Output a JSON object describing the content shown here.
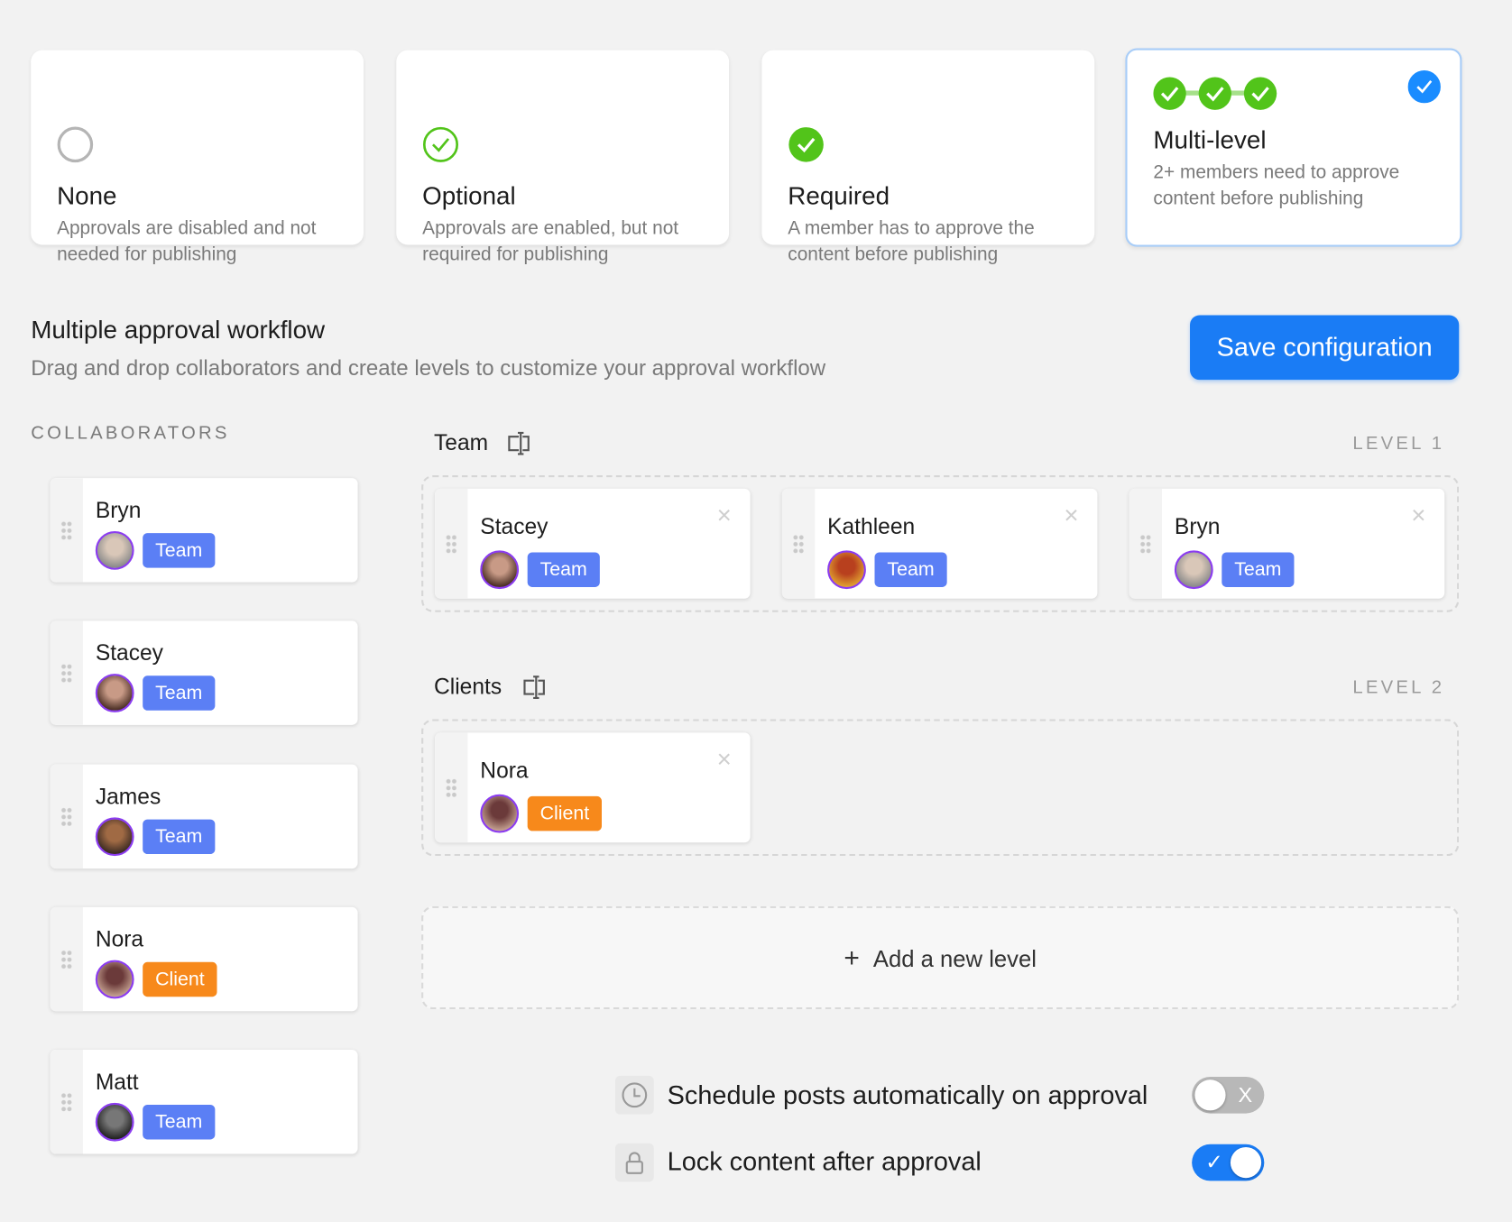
{
  "modes": [
    {
      "title": "None",
      "description": "Approvals are disabled and not needed for publishing",
      "icon": "empty-circle-icon",
      "selected": false
    },
    {
      "title": "Optional",
      "description": "Approvals are enabled, but not required for publishing",
      "icon": "check-circle-outline-icon",
      "selected": false
    },
    {
      "title": "Required",
      "description": "A member has to approve the content before publishing",
      "icon": "check-badge-icon",
      "selected": false
    },
    {
      "title": "Multi-level",
      "description": "2+ members need to approve content before publishing",
      "icon": "multi-check-icon",
      "selected": true
    }
  ],
  "workflow": {
    "title": "Multiple approval workflow",
    "subtitle": "Drag and drop collaborators and create levels to customize your approval workflow",
    "save_label": "Save configuration"
  },
  "collaborators": {
    "heading": "COLLABORATORS",
    "items": [
      {
        "name": "Bryn",
        "role": "Team"
      },
      {
        "name": "Stacey",
        "role": "Team"
      },
      {
        "name": "James",
        "role": "Team"
      },
      {
        "name": "Nora",
        "role": "Client"
      },
      {
        "name": "Matt",
        "role": "Team"
      }
    ]
  },
  "levels": [
    {
      "name": "Team",
      "number": "LEVEL 1",
      "members": [
        {
          "name": "Stacey",
          "role": "Team"
        },
        {
          "name": "Kathleen",
          "role": "Team"
        },
        {
          "name": "Bryn",
          "role": "Team"
        }
      ]
    },
    {
      "name": "Clients",
      "number": "LEVEL 2",
      "members": [
        {
          "name": "Nora",
          "role": "Client"
        }
      ]
    }
  ],
  "add_level": {
    "icon": "+",
    "label": "Add a new level"
  },
  "settings": [
    {
      "label": "Schedule posts automatically on approval",
      "icon": "clock-icon",
      "enabled": false,
      "mark": "X"
    },
    {
      "label": "Lock content after approval",
      "icon": "lock-icon",
      "enabled": true,
      "mark": "✓"
    }
  ],
  "colors": {
    "accent": "#1a7cf5",
    "team": "#5b7ff5",
    "client": "#f7891b",
    "success": "#52c41a"
  }
}
